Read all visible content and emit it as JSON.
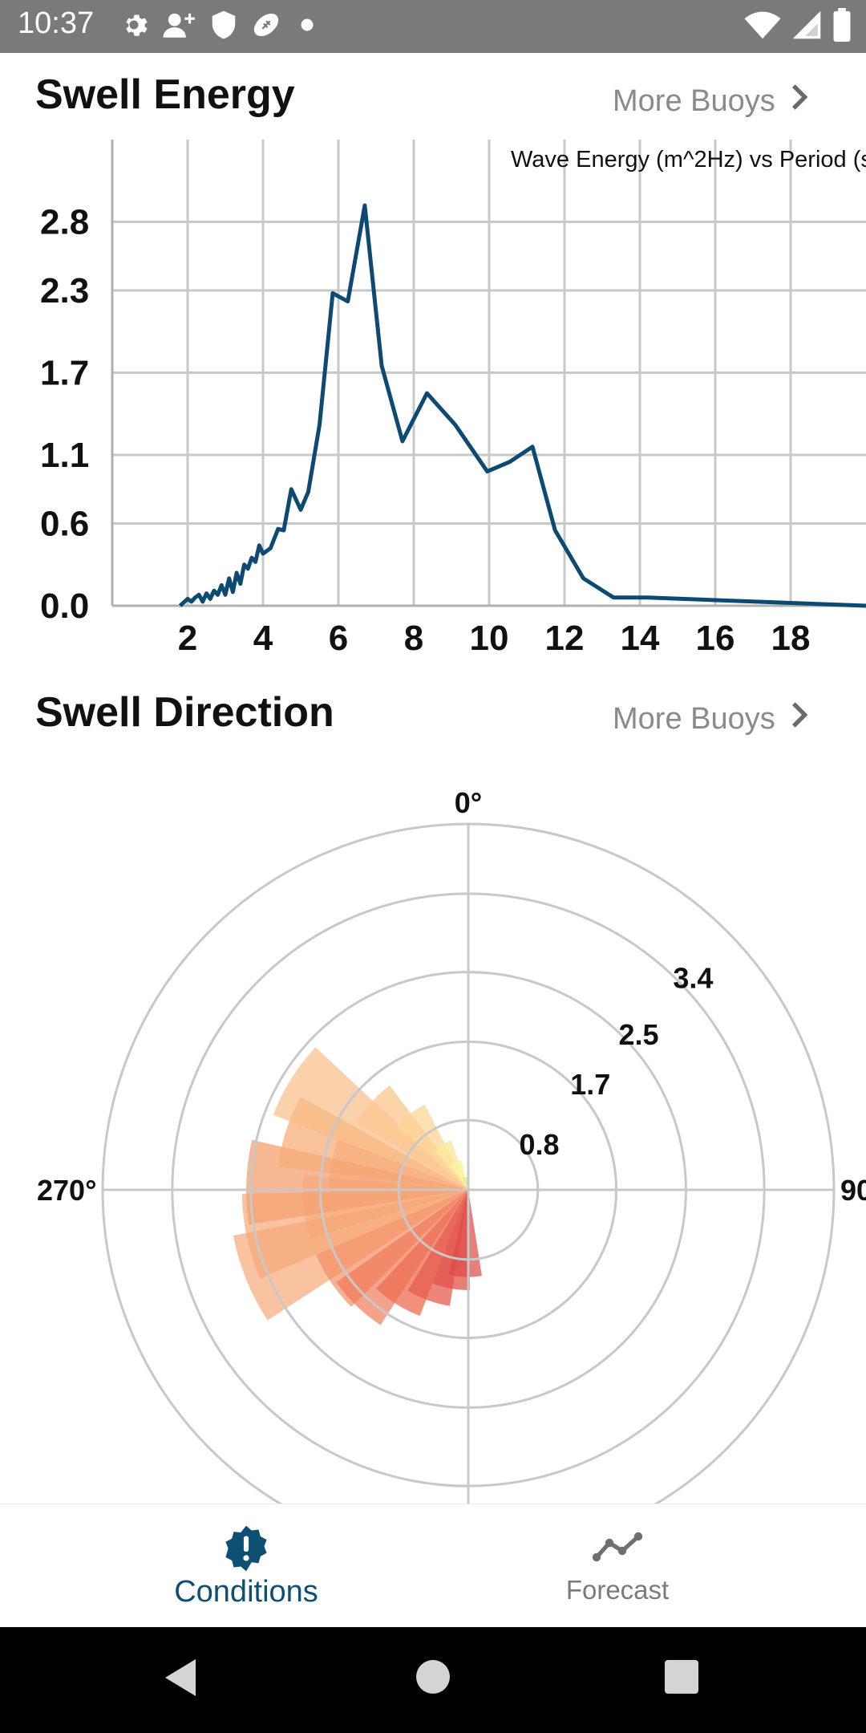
{
  "status_bar": {
    "time": "10:37",
    "left_icons": [
      "gear-icon",
      "person-add-icon",
      "shield-icon",
      "football-icon",
      "dot-icon"
    ],
    "right_icons": [
      "wifi-icon",
      "cell-signal-icon",
      "battery-icon"
    ]
  },
  "swell_energy": {
    "title": "Swell Energy",
    "more_label": "More Buoys"
  },
  "swell_direction": {
    "title": "Swell Direction",
    "more_label": "More Buoys"
  },
  "chart_data": [
    {
      "type": "line",
      "title": "Wave Energy (m^2Hz) vs Period (s",
      "xlabel": "",
      "ylabel": "",
      "xlim": [
        0,
        20
      ],
      "ylim": [
        0,
        3.4
      ],
      "x_ticks": [
        2,
        4,
        6,
        8,
        10,
        12,
        14,
        16,
        18
      ],
      "y_ticks": [
        0.0,
        0.6,
        1.1,
        1.7,
        2.3,
        2.8
      ],
      "y_tick_labels": [
        "0.0",
        "0.6",
        "1.1",
        "1.7",
        "2.3",
        "2.8"
      ],
      "grid": true,
      "line_color": "#0d4a72",
      "series": [
        {
          "x": [
            1.8,
            2.0,
            2.1,
            2.2,
            2.3,
            2.4,
            2.5,
            2.6,
            2.7,
            2.8,
            2.9,
            3.0,
            3.1,
            3.2,
            3.3,
            3.4,
            3.5,
            3.6,
            3.7,
            3.8,
            3.9,
            4.0,
            4.2,
            4.4,
            4.55,
            4.75,
            5.0,
            5.2,
            5.5,
            5.85,
            6.25,
            6.7,
            7.15,
            7.7,
            8.35,
            9.1,
            9.95,
            10.55,
            11.15,
            11.75,
            12.5,
            13.3,
            14.2,
            20.0
          ],
          "y": [
            0.0,
            0.05,
            0.03,
            0.06,
            0.08,
            0.03,
            0.09,
            0.05,
            0.11,
            0.08,
            0.15,
            0.08,
            0.2,
            0.1,
            0.24,
            0.16,
            0.3,
            0.27,
            0.35,
            0.32,
            0.44,
            0.38,
            0.42,
            0.56,
            0.55,
            0.85,
            0.7,
            0.83,
            1.32,
            2.28,
            2.22,
            2.92,
            1.75,
            1.2,
            1.55,
            1.32,
            0.98,
            1.05,
            1.16,
            0.55,
            0.2,
            0.06,
            0.06,
            0.0
          ]
        }
      ]
    },
    {
      "type": "polar",
      "direction_labels": [
        "0°",
        "90",
        "270°"
      ],
      "ring_values": [
        0.8,
        1.7,
        2.5,
        3.4
      ],
      "ring_labels": [
        "0.8",
        "1.7",
        "2.5",
        "3.4"
      ],
      "rmax": 4.2,
      "wedges": [
        {
          "dir": 248,
          "r": 2.75,
          "color": "#f7a878",
          "opacity": 0.7
        },
        {
          "dir": 258,
          "r": 2.6,
          "color": "#f7a878",
          "opacity": 0.7
        },
        {
          "dir": 272,
          "r": 2.55,
          "color": "#f4a070",
          "opacity": 0.75
        },
        {
          "dir": 288,
          "r": 2.2,
          "color": "#f6ad78",
          "opacity": 0.75
        },
        {
          "dir": 302,
          "r": 2.4,
          "color": "#f8bd88",
          "opacity": 0.7
        },
        {
          "dir": 312,
          "r": 1.5,
          "color": "#fac58e",
          "opacity": 0.75
        },
        {
          "dir": 322,
          "r": 1.1,
          "color": "#fcd694",
          "opacity": 0.75
        },
        {
          "dir": 330,
          "r": 0.6,
          "color": "#fde79c",
          "opacity": 0.8
        },
        {
          "dir": 336,
          "r": 0.35,
          "color": "#f9f4a0",
          "opacity": 0.85
        },
        {
          "dir": 344,
          "r": 0.15,
          "color": "#d8efa0",
          "opacity": 0.9
        },
        {
          "dir": 236,
          "r": 1.9,
          "color": "#f38f64",
          "opacity": 0.7
        },
        {
          "dir": 224,
          "r": 1.85,
          "color": "#ef7a58",
          "opacity": 0.7
        },
        {
          "dir": 212,
          "r": 1.55,
          "color": "#ec6c52",
          "opacity": 0.75
        },
        {
          "dir": 200,
          "r": 1.35,
          "color": "#e65d4e",
          "opacity": 0.75
        },
        {
          "dir": 190,
          "r": 1.15,
          "color": "#e2524a",
          "opacity": 0.75
        },
        {
          "dir": 182,
          "r": 1.0,
          "color": "#dc4a46",
          "opacity": 0.7
        },
        {
          "dir": 264,
          "r": 1.9,
          "color": "#f5a272",
          "opacity": 0.5
        },
        {
          "dir": 280,
          "r": 1.6,
          "color": "#f5a272",
          "opacity": 0.5
        }
      ]
    }
  ],
  "bottom_nav": {
    "items": [
      {
        "label": "Conditions",
        "icon": "alert-badge-icon",
        "active": true
      },
      {
        "label": "Forecast",
        "icon": "trend-line-icon",
        "active": false
      }
    ]
  },
  "colors": {
    "accent": "#0e4f74",
    "line": "#0d4a72",
    "grid": "#c8c8c8"
  }
}
